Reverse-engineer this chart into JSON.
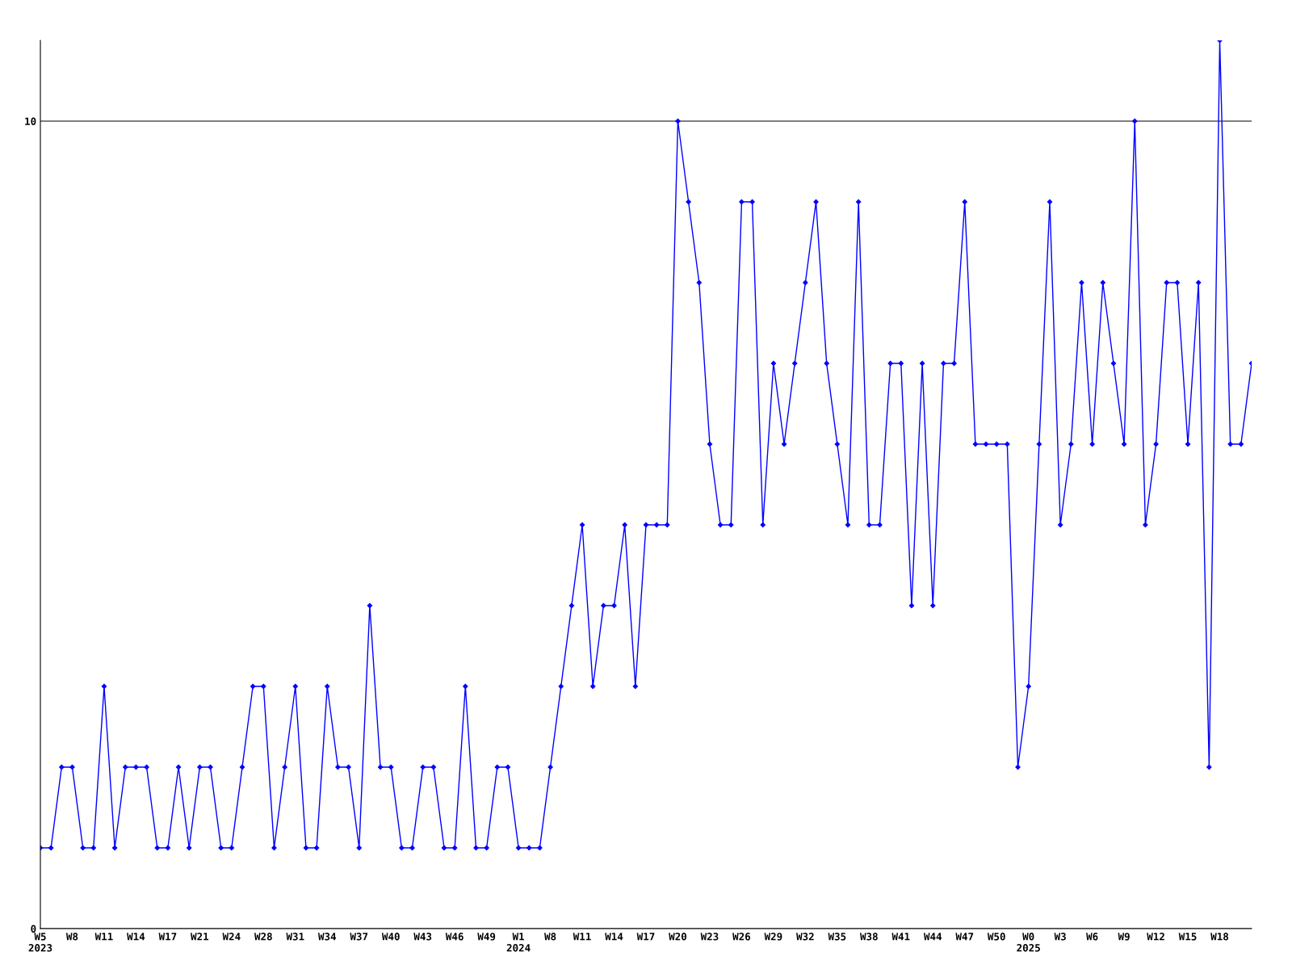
{
  "chart_data": {
    "type": "line",
    "categories": [
      "W5\n2023",
      null,
      null,
      "W8",
      null,
      null,
      "W11",
      null,
      null,
      "W14",
      null,
      null,
      "W17",
      null,
      null,
      "W21",
      null,
      null,
      "W24",
      null,
      null,
      "W28",
      null,
      null,
      "W31",
      null,
      null,
      "W34",
      null,
      null,
      "W37",
      null,
      null,
      "W40",
      null,
      null,
      "W43",
      null,
      null,
      "W46",
      null,
      null,
      "W49",
      null,
      null,
      "W1\n2024",
      null,
      null,
      "W8",
      null,
      null,
      "W11",
      null,
      null,
      "W14",
      null,
      null,
      "W17",
      null,
      null,
      "W20",
      null,
      null,
      "W23",
      null,
      null,
      "W26",
      null,
      null,
      "W29",
      null,
      null,
      "W32",
      null,
      null,
      "W35",
      null,
      null,
      "W38",
      null,
      null,
      "W41",
      null,
      null,
      "W44",
      null,
      null,
      "W47",
      null,
      null,
      "W50",
      null,
      null,
      "W0\n2025",
      null,
      null,
      "W3",
      null,
      null,
      "W6",
      null,
      null,
      "W9",
      null,
      null,
      "W12",
      null,
      null,
      "W15",
      null,
      null,
      "W18",
      null,
      null,
      null
    ],
    "series": [
      {
        "color": "#0000ff",
        "values": [
          1,
          1,
          2,
          2,
          1,
          1,
          3,
          1,
          2,
          2,
          2,
          1,
          1,
          2,
          1,
          2,
          2,
          1,
          1,
          2,
          3,
          3,
          1,
          2,
          3,
          1,
          1,
          3,
          2,
          2,
          1,
          4,
          2,
          2,
          1,
          1,
          2,
          2,
          1,
          1,
          3,
          1,
          1,
          2,
          2,
          1,
          1,
          1,
          2,
          3,
          4,
          5,
          3,
          4,
          4,
          5,
          3,
          5,
          5,
          5,
          10,
          9,
          8,
          6,
          5,
          5,
          9,
          9,
          5,
          7,
          6,
          7,
          8,
          9,
          7,
          6,
          5,
          9,
          5,
          5,
          7,
          7,
          4,
          7,
          4,
          7,
          7,
          9,
          6,
          6,
          6,
          6,
          2,
          3,
          6,
          9,
          5,
          6,
          8,
          6,
          8,
          7,
          6,
          10,
          5,
          6,
          8,
          8,
          6,
          8,
          2,
          11,
          6,
          6,
          7
        ]
      }
    ],
    "ylim": [
      0,
      11
    ],
    "yticks": [
      0,
      10
    ],
    "grid": "y",
    "marker": "diamond",
    "line_style": "solid"
  }
}
